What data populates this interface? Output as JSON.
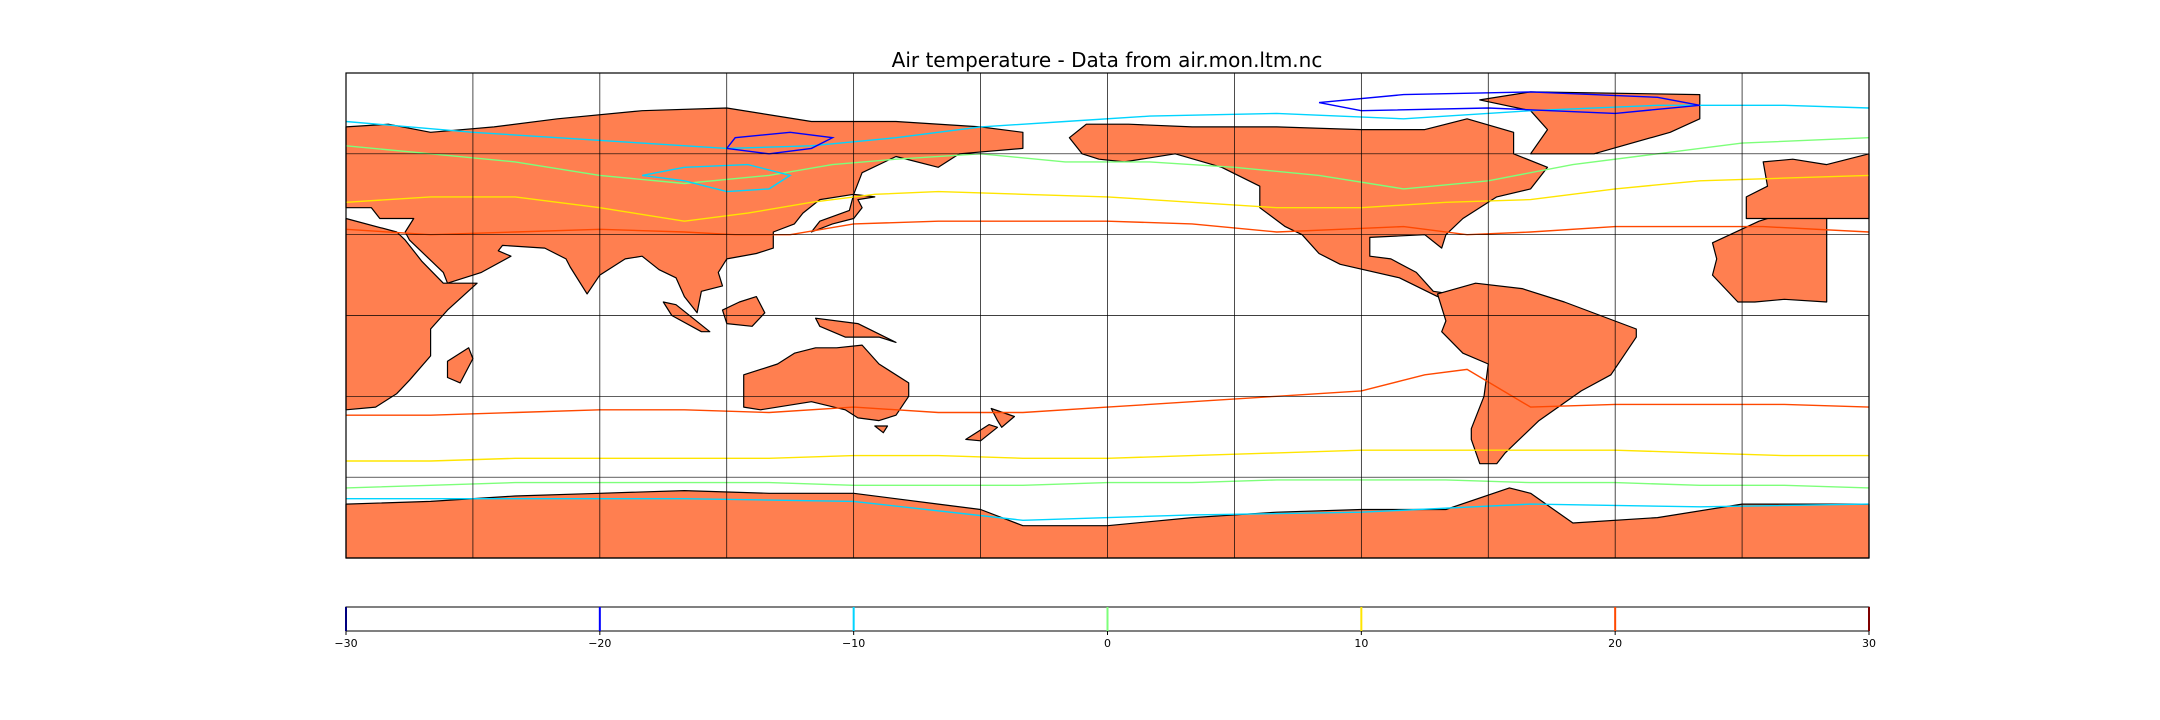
{
  "chart_data": {
    "type": "heatmap",
    "title": "Air temperature - Data from air.mon.ltm.nc",
    "map": {
      "projection": "cylindrical",
      "lon_range": [
        20,
        380
      ],
      "lat_range": [
        -90,
        90
      ],
      "graticule_lon_step": 30,
      "graticule_lat_step": 30,
      "grid": true,
      "land_color": "#ff7f50",
      "ocean_color": "#ffffff",
      "coastline_color": "#000000"
    },
    "contour_levels": [
      {
        "value": -30,
        "color": "#00007f"
      },
      {
        "value": -20,
        "color": "#0000ff"
      },
      {
        "value": -10,
        "color": "#00d4ff"
      },
      {
        "value": 0,
        "color": "#7dff7a"
      },
      {
        "value": 10,
        "color": "#ffe500"
      },
      {
        "value": 20,
        "color": "#ff4800"
      },
      {
        "value": 30,
        "color": "#7f0000"
      }
    ],
    "colorbar": {
      "orientation": "horizontal",
      "range": [
        -30,
        30
      ],
      "ticks": [
        "-30",
        "-20",
        "-10",
        "0",
        "10",
        "20",
        "30"
      ]
    }
  }
}
